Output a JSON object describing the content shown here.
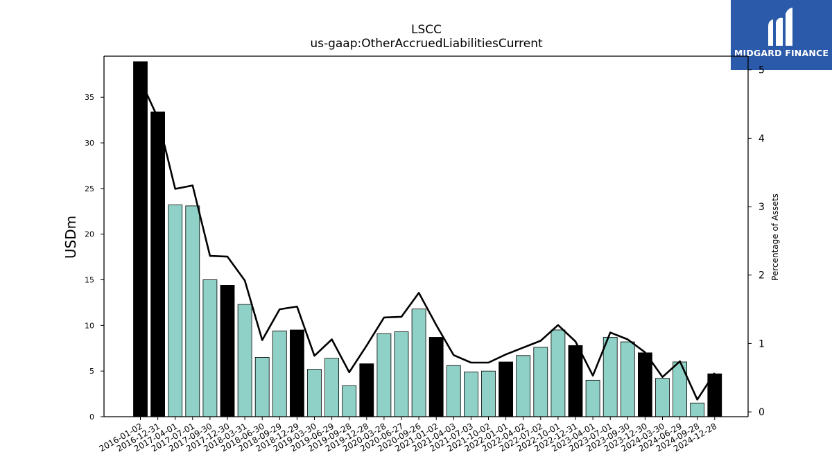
{
  "brand": {
    "name": "MIDGARD FINANCE",
    "color": "#2a5aa9"
  },
  "chart_data": {
    "type": "bar",
    "title": "LSCC",
    "subtitle": "us-gaap:OtherAccruedLiabilitiesCurrent",
    "xlabel": "",
    "ylabel": "USDm",
    "y2label": "Percentage of Assets",
    "ylim": [
      0,
      39.5
    ],
    "y2lim": [
      -0.07,
      5.2
    ],
    "yticks": [
      0,
      5,
      10,
      15,
      20,
      25,
      30,
      35
    ],
    "y2ticks": [
      0,
      1,
      2,
      3,
      4,
      5
    ],
    "grid": false,
    "colors": {
      "fiscal_year_end": "#000000",
      "quarter": "#8fd1c6",
      "line": "#000000"
    },
    "categories": [
      "2016-01-02",
      "2016-12-31",
      "2017-04-01",
      "2017-07-01",
      "2017-09-30",
      "2017-12-30",
      "2018-03-31",
      "2018-06-30",
      "2018-09-29",
      "2018-12-29",
      "2019-03-30",
      "2019-06-29",
      "2019-09-28",
      "2019-12-28",
      "2020-03-28",
      "2020-06-27",
      "2020-09-26",
      "2021-01-02",
      "2021-04-03",
      "2021-07-03",
      "2021-10-02",
      "2022-01-01",
      "2022-04-02",
      "2022-07-02",
      "2022-10-01",
      "2022-12-31",
      "2023-04-01",
      "2023-07-01",
      "2023-09-30",
      "2023-12-30",
      "2024-03-30",
      "2024-06-29",
      "2024-09-28",
      "2024-12-28"
    ],
    "series": [
      {
        "type": "bar",
        "values": [
          38.9,
          33.4,
          23.2,
          23.1,
          15.0,
          14.4,
          12.3,
          6.5,
          9.4,
          9.5,
          5.2,
          6.4,
          3.4,
          5.8,
          9.1,
          9.3,
          11.8,
          8.7,
          5.6,
          4.9,
          5.0,
          6.0,
          6.7,
          7.6,
          9.5,
          7.8,
          4.0,
          8.7,
          8.2,
          7.0,
          4.2,
          6.0,
          1.5,
          4.7
        ],
        "fiscal_year_end": [
          true,
          true,
          false,
          false,
          false,
          true,
          false,
          false,
          false,
          true,
          false,
          false,
          false,
          true,
          false,
          false,
          false,
          true,
          false,
          false,
          false,
          true,
          false,
          false,
          false,
          true,
          false,
          false,
          false,
          true,
          false,
          false,
          false,
          true
        ]
      },
      {
        "type": "line",
        "axis": "right",
        "values": [
          4.85,
          4.3,
          3.26,
          3.31,
          2.28,
          2.27,
          1.92,
          1.05,
          1.5,
          1.54,
          0.82,
          1.06,
          0.58,
          0.97,
          1.38,
          1.39,
          1.74,
          1.27,
          0.83,
          0.72,
          0.72,
          0.84,
          0.94,
          1.04,
          1.27,
          1.03,
          0.53,
          1.16,
          1.06,
          0.87,
          0.51,
          0.74,
          0.18,
          0.57
        ]
      }
    ]
  }
}
